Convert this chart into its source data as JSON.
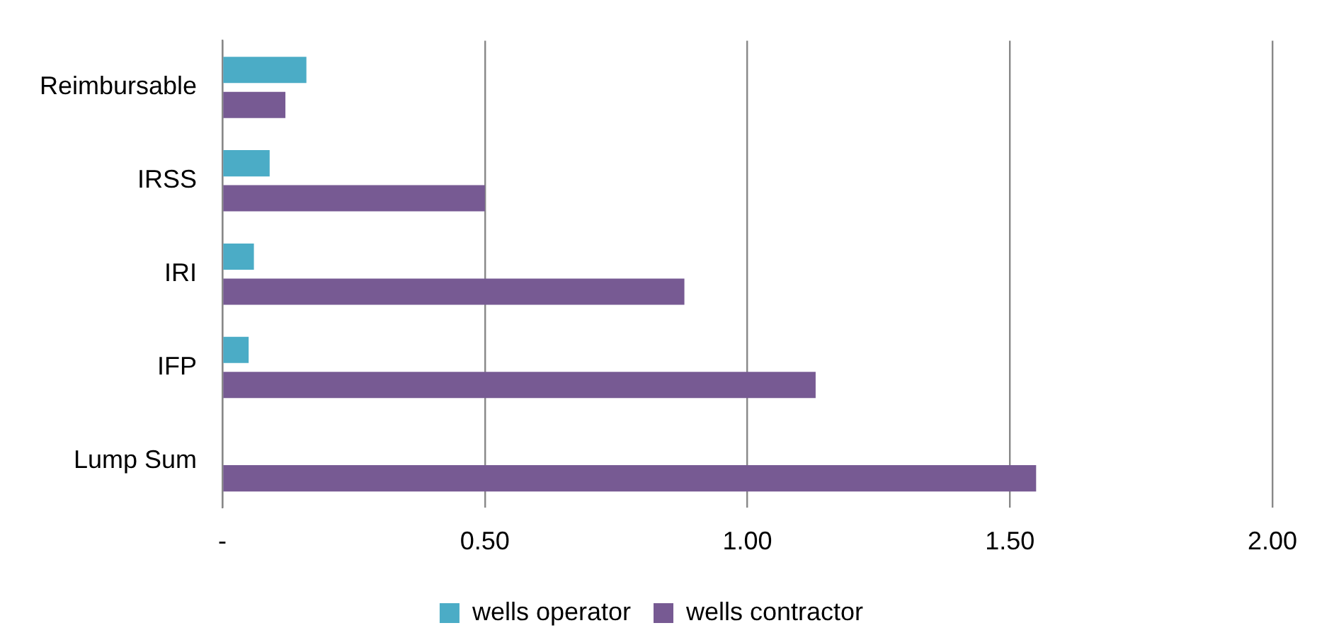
{
  "chart_data": {
    "type": "bar",
    "orientation": "horizontal",
    "categories": [
      "Reimbursable",
      "IRSS",
      "IRI",
      "IFP",
      "Lump Sum"
    ],
    "series": [
      {
        "name": "wells operator",
        "color": "#4bacc6",
        "values": [
          0.16,
          0.09,
          0.06,
          0.05,
          0
        ]
      },
      {
        "name": "wells contractor",
        "color": "#775a93",
        "values": [
          0.12,
          0.5,
          0.88,
          1.13,
          1.55
        ]
      }
    ],
    "xlim": [
      0,
      2
    ],
    "xticks": [
      {
        "value": 0,
        "label": "-"
      },
      {
        "value": 0.5,
        "label": "0.50"
      },
      {
        "value": 1,
        "label": "1.00"
      },
      {
        "value": 1.5,
        "label": "1.50"
      },
      {
        "value": 2,
        "label": "2.00"
      }
    ],
    "grid": "x",
    "legend": "bottom"
  }
}
